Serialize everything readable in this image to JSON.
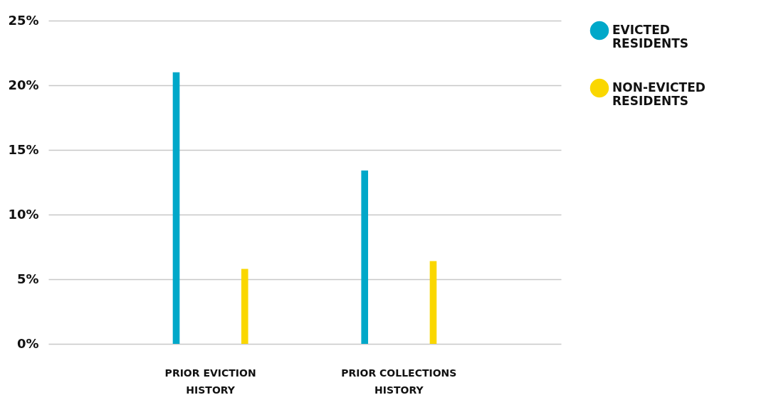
{
  "chart_data": {
    "type": "bar",
    "categories": [
      "PRIOR EVICTION HISTORY",
      "PRIOR COLLECTIONS HISTORY"
    ],
    "series": [
      {
        "name": "EVICTED RESIDENTS",
        "color": "#00a8c9",
        "values": [
          21.0,
          13.4
        ]
      },
      {
        "name": "NON-EVICTED RESIDENTS",
        "color": "#fad700",
        "values": [
          5.8,
          6.4
        ]
      }
    ],
    "ylim": [
      0,
      25
    ],
    "yticks": [
      {
        "value": 0,
        "label": "0%"
      },
      {
        "value": 5,
        "label": "5%"
      },
      {
        "value": 10,
        "label": "10%"
      },
      {
        "value": 15,
        "label": "15%"
      },
      {
        "value": 20,
        "label": "20%"
      },
      {
        "value": 25,
        "label": "25%"
      }
    ],
    "grid": "y",
    "legend": "right"
  }
}
